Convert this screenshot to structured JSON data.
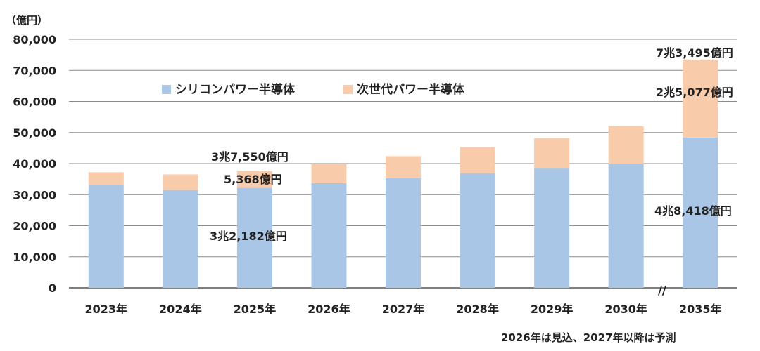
{
  "chart_data": {
    "type": "bar",
    "stacked": true,
    "y_unit_label": "（億円）",
    "categories": [
      "2023年",
      "2024年",
      "2025年",
      "2026年",
      "2027年",
      "2028年",
      "2029年",
      "2030年",
      "2035年"
    ],
    "series": [
      {
        "name": "シリコンパワー半導体",
        "color": "#a9c6e6",
        "values": [
          33000,
          31500,
          32182,
          33700,
          35300,
          36900,
          38400,
          40000,
          48418
        ]
      },
      {
        "name": "次世代パワー半導体",
        "color": "#f8cbaa",
        "values": [
          4200,
          5000,
          5368,
          6300,
          7100,
          8400,
          9800,
          12000,
          25077
        ]
      }
    ],
    "ylim": [
      0,
      80000
    ],
    "yticks": [
      "0",
      "10,000",
      "20,000",
      "30,000",
      "40,000",
      "50,000",
      "60,000",
      "70,000",
      "80,000"
    ],
    "grid": true,
    "legend_position": "top-left",
    "axis_break_marker": "//",
    "annotations": {
      "total_2025": "3兆7,550億円",
      "next_gen_2025": "5,368億円",
      "silicon_2025": "3兆2,182億円",
      "total_2035": "7兆3,495億円",
      "next_gen_2035": "2兆5,077億円",
      "silicon_2035": "4兆8,418億円"
    },
    "footnote": "2026年は見込、2027年以降は予測"
  }
}
